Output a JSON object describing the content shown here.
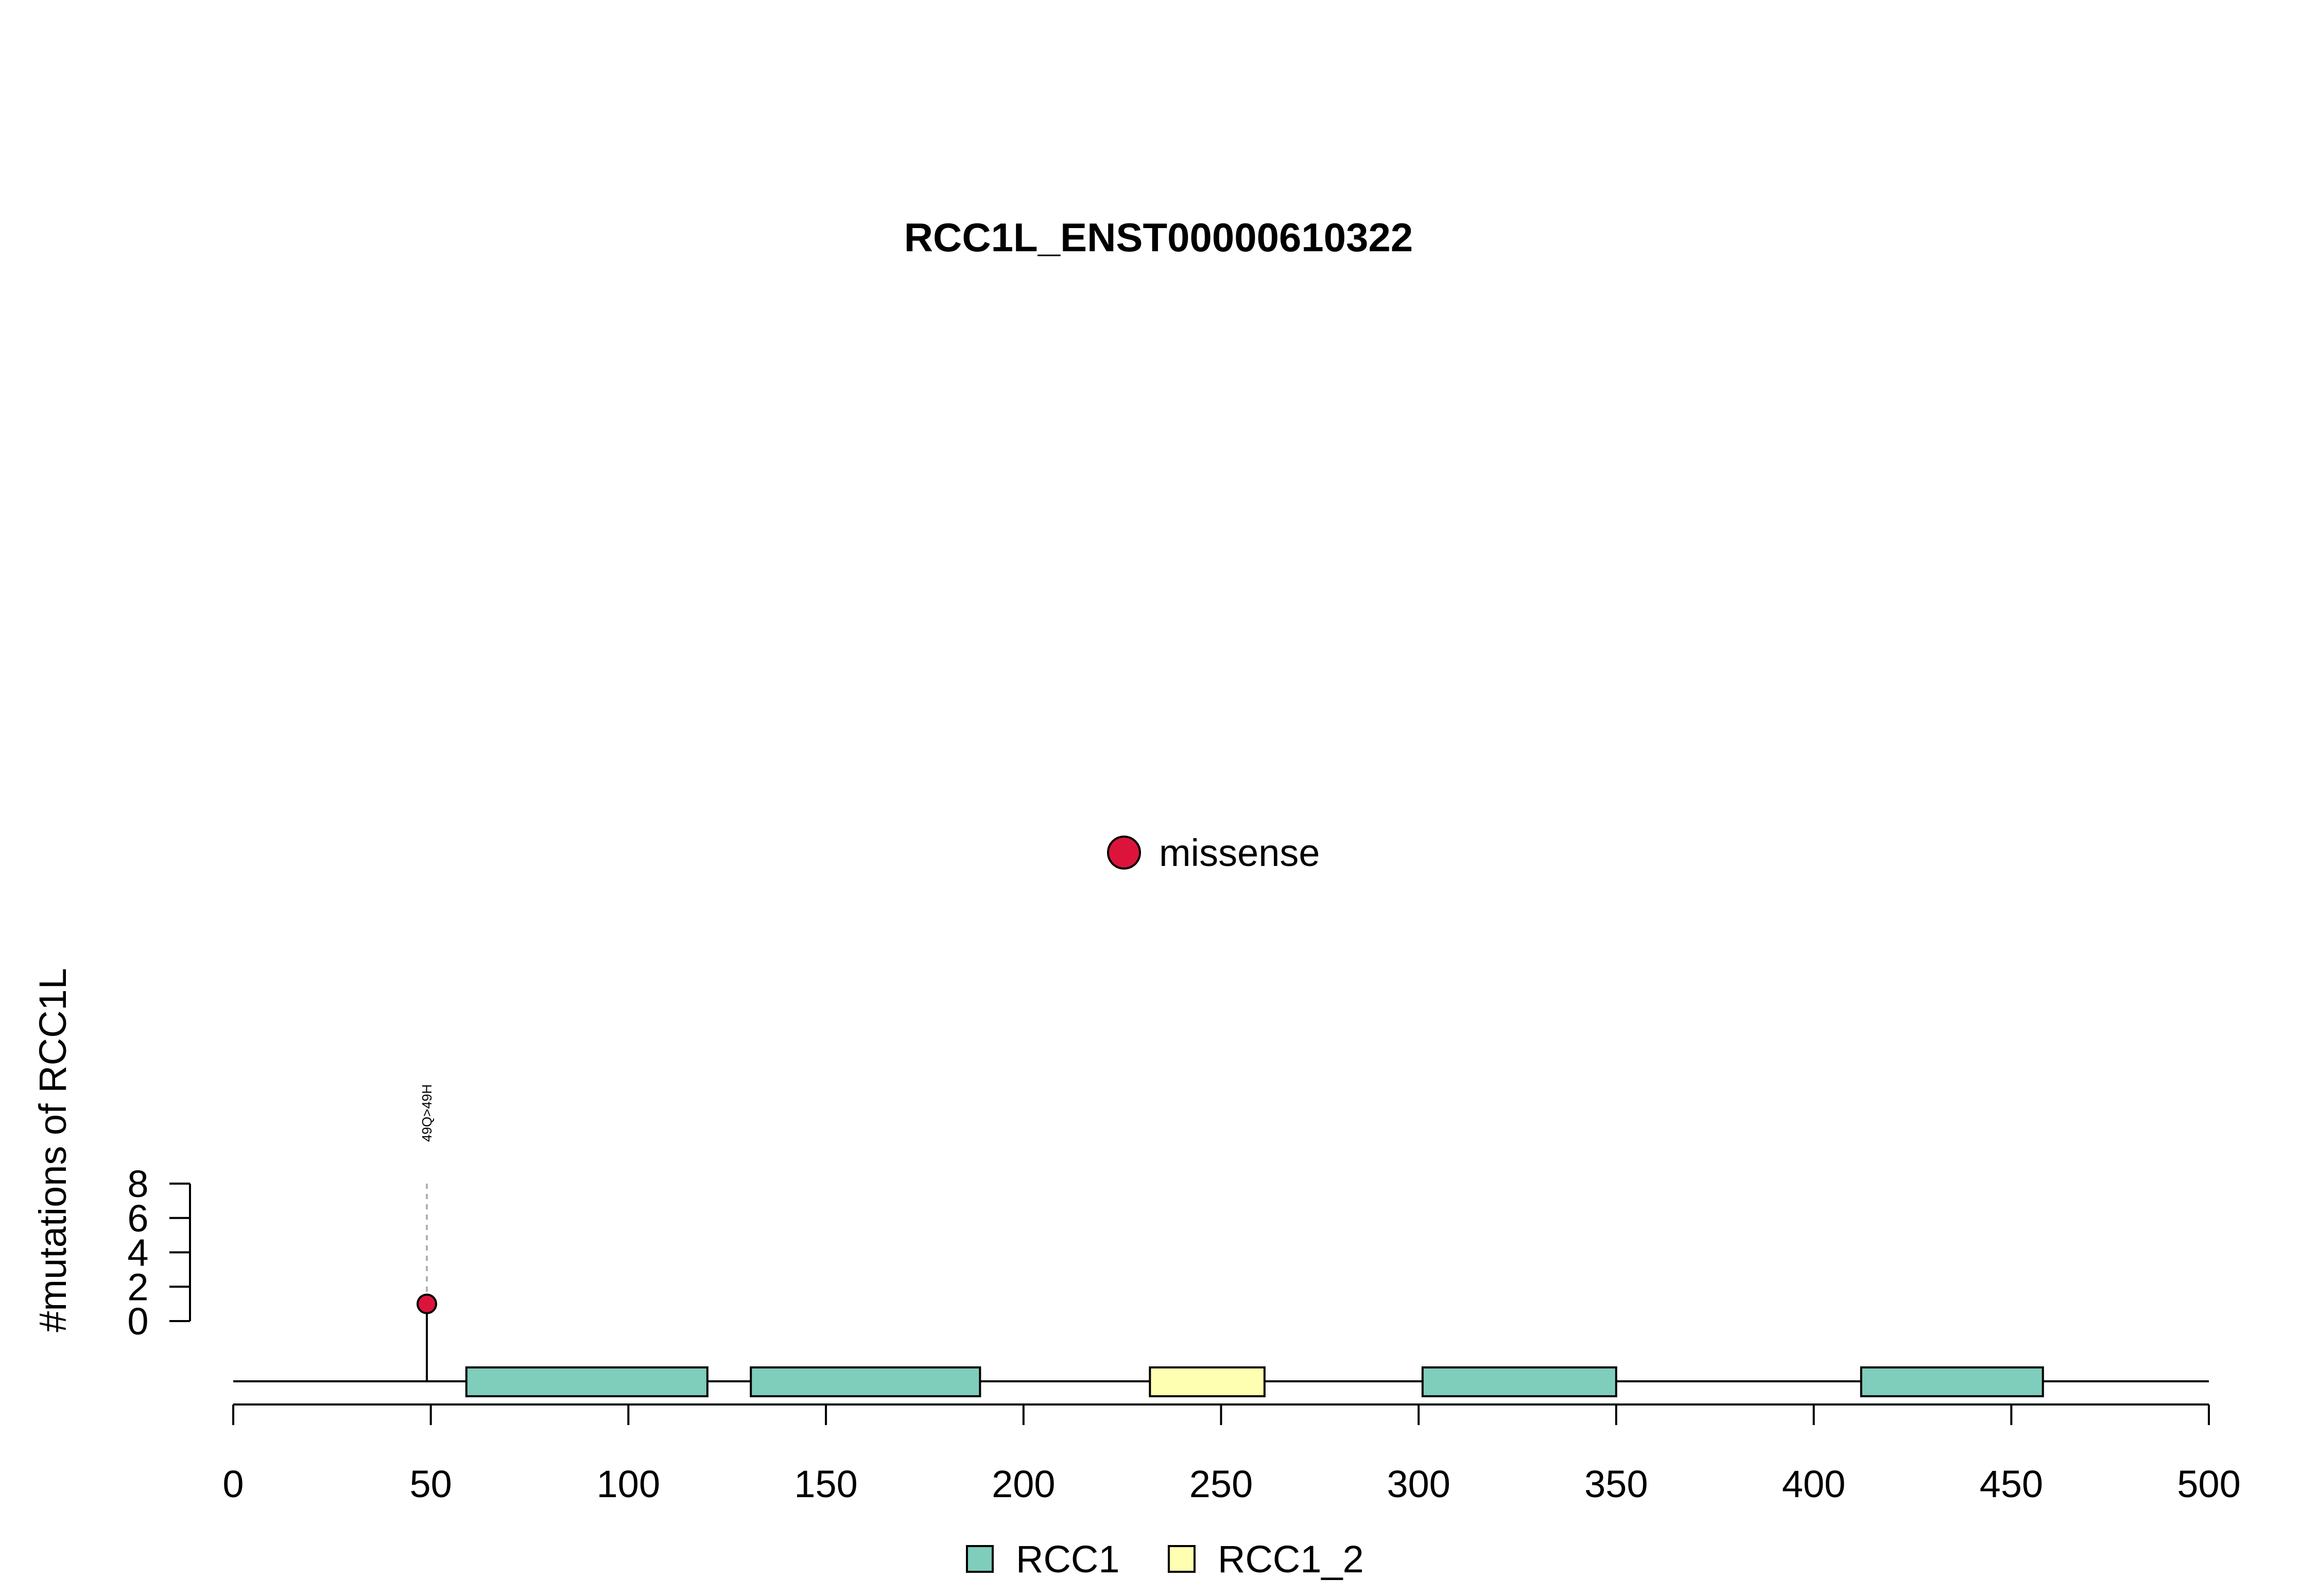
{
  "chart_data": {
    "type": "lollipop",
    "title": "RCC1L_ENST00000610322",
    "ylabel": "#mutations of RCC1L",
    "xlabel": "",
    "xlim": [
      0,
      500
    ],
    "x_ticks": [
      0,
      50,
      100,
      150,
      200,
      250,
      300,
      350,
      400,
      450,
      500
    ],
    "ylim": [
      0,
      8
    ],
    "y_ticks": [
      0,
      2,
      4,
      6,
      8
    ],
    "mutation_legend": [
      {
        "label": "missense",
        "color": "#DC143C"
      }
    ],
    "mutations": [
      {
        "position": 49,
        "count": 1,
        "label": "49Q>49H",
        "type": "missense",
        "color": "#DC143C"
      }
    ],
    "domains": [
      {
        "name": "RCC1",
        "start": 59,
        "end": 120,
        "color": "#7FCDBB"
      },
      {
        "name": "RCC1",
        "start": 131,
        "end": 189,
        "color": "#7FCDBB"
      },
      {
        "name": "RCC1_2",
        "start": 232,
        "end": 261,
        "color": "#FFFFB2"
      },
      {
        "name": "RCC1",
        "start": 301,
        "end": 350,
        "color": "#7FCDBB"
      },
      {
        "name": "RCC1",
        "start": 412,
        "end": 458,
        "color": "#7FCDBB"
      }
    ],
    "domain_legend": [
      {
        "label": "RCC1",
        "color": "#7FCDBB"
      },
      {
        "label": "RCC1_2",
        "color": "#FFFFB2"
      }
    ],
    "grid": false
  }
}
